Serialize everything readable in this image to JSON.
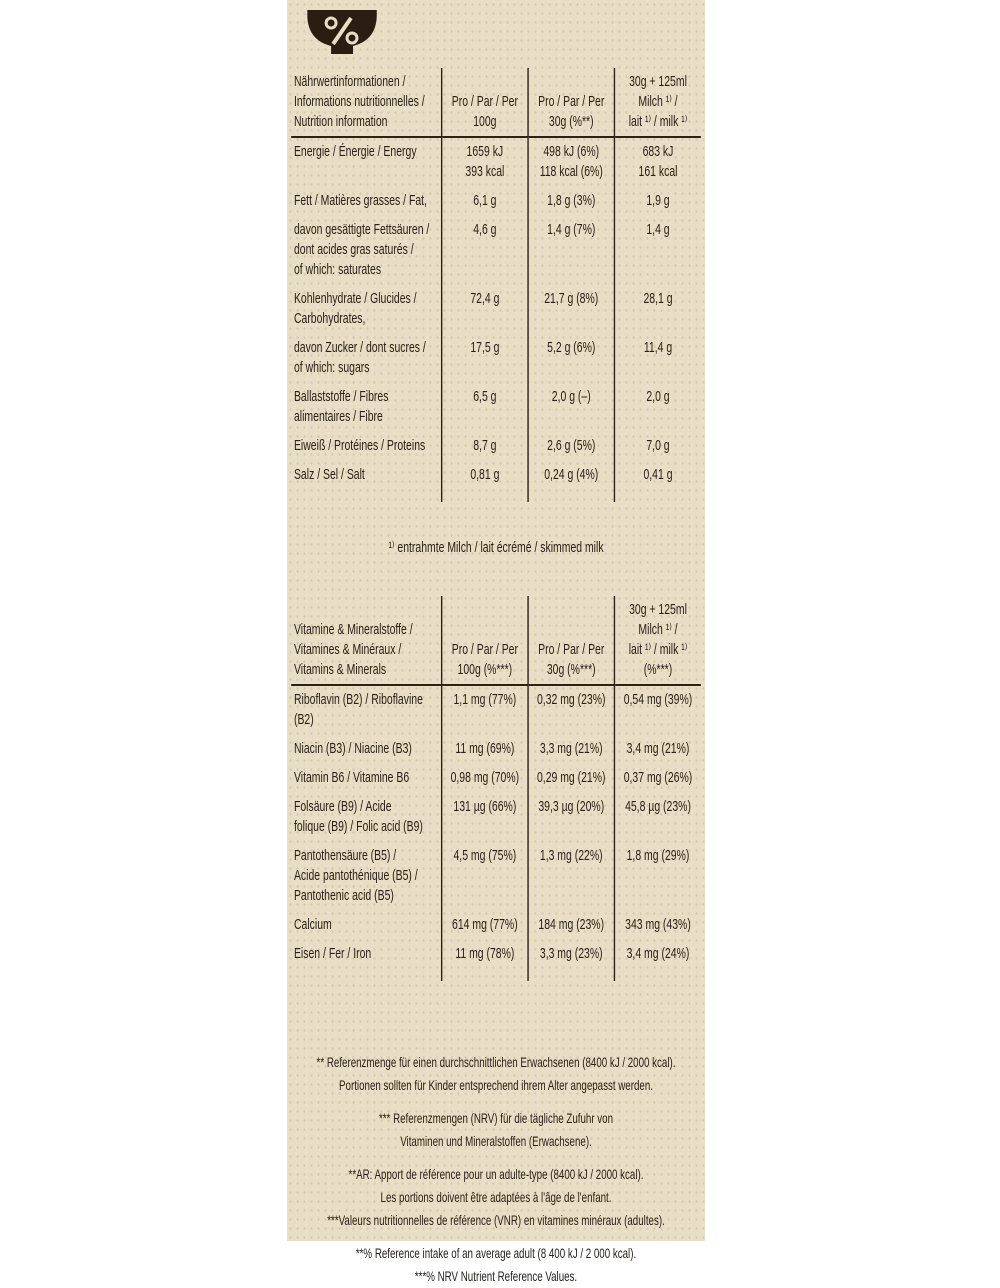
{
  "icon": "percent-bowl-icon",
  "colors": {
    "background": "#e8dec6",
    "text": "#2a2118"
  },
  "nutrition": {
    "headers": [
      "Nährwertinformationen /\nInformations nutritionnelles /\nNutrition information",
      "Pro / Par / Per\n100g",
      "Pro / Par / Per\n30g (%**)",
      "30g + 125ml\nMilch ¹⁾ /\nlait ¹⁾ / milk ¹⁾"
    ],
    "rows": [
      {
        "label": "Energie / Énergie / Energy",
        "c1": "1659 kJ\n393 kcal",
        "c2": "498 kJ  (6%)\n118 kcal  (6%)",
        "c3": "683 kJ\n161 kcal"
      },
      {
        "label": "Fett / Matières grasses / Fat,",
        "c1": "6,1 g",
        "c2": "1,8 g  (3%)",
        "c3": "1,9 g"
      },
      {
        "label": "davon gesättigte Fettsäuren /\ndont acides gras saturés /\nof which: saturates",
        "c1": "4,6 g",
        "c2": "1,4 g  (7%)",
        "c3": "1,4 g"
      },
      {
        "label": "Kohlenhydrate / Glucides /\nCarbohydrates,",
        "c1": "72,4 g",
        "c2": "21,7 g  (8%)",
        "c3": "28,1 g"
      },
      {
        "label": "davon Zucker / dont sucres /\nof which: sugars",
        "c1": "17,5 g",
        "c2": "5,2 g  (6%)",
        "c3": "11,4 g"
      },
      {
        "label": "Ballaststoffe / Fibres\nalimentaires / Fibre",
        "c1": "6,5 g",
        "c2": "2,0 g  (–)",
        "c3": "2,0 g"
      },
      {
        "label": "Eiweiß / Protéines / Proteins",
        "c1": "8,7 g",
        "c2": "2,6 g  (5%)",
        "c3": "7,0 g"
      },
      {
        "label": "Salz / Sel / Salt",
        "c1": "0,81 g",
        "c2": "0,24 g  (4%)",
        "c3": "0,41 g"
      }
    ]
  },
  "milk_note": "¹⁾ entrahmte Milch / lait écrémé / skimmed milk",
  "vitamins": {
    "headers": [
      "Vitamine & Mineralstoffe /\nVitamines & Minéraux /\nVitamins & Minerals",
      "Pro / Par / Per\n100g (%***)",
      "Pro / Par / Per\n30g (%***)",
      "30g + 125ml\nMilch ¹⁾ /\nlait ¹⁾ / milk ¹⁾\n(%***)"
    ],
    "rows": [
      {
        "label": "Riboflavin (B2) / Riboflavine (B2)",
        "c1": "1,1 mg  (77%)",
        "c2": "0,32 mg  (23%)",
        "c3": "0,54 mg  (39%)"
      },
      {
        "label": "Niacin (B3) / Niacine (B3)",
        "c1": "11 mg  (69%)",
        "c2": "3,3 mg  (21%)",
        "c3": "3,4 mg   (21%)"
      },
      {
        "label": "Vitamin B6 / Vitamine B6",
        "c1": "0,98 mg  (70%)",
        "c2": "0,29 mg  (21%)",
        "c3": "0,37 mg  (26%)"
      },
      {
        "label": "Folsäure (B9)  / Acide\nfolique (B9) / Folic acid (B9)",
        "c1": "131 µg  (66%)",
        "c2": "39,3 µg  (20%)",
        "c3": "45,8 µg  (23%)"
      },
      {
        "label": "Pantothensäure (B5) /\nAcide  pantothénique (B5) /\nPantothenic acid (B5)",
        "c1": "4,5 mg  (75%)",
        "c2": "1,3 mg  (22%)",
        "c3": "1,8 mg   (29%)"
      },
      {
        "label": "Calcium",
        "c1": "614 mg  (77%)",
        "c2": "184 mg  (23%)",
        "c3": "343 mg  (43%)"
      },
      {
        "label": "Eisen / Fer / Iron",
        "c1": "11 mg  (78%)",
        "c2": "3,3 mg  (23%)",
        "c3": "3,4 mg   (24%)"
      }
    ]
  },
  "footnotes": [
    "** Referenzmenge für einen durchschnittlichen Erwachsenen (8400 kJ / 2000 kcal).",
    "Portionen sollten für Kinder entsprechend ihrem Alter angepasst werden.",
    "*** Referenzmengen (NRV) für die tägliche Zufuhr von",
    "Vitaminen und Mineralstoffen (Erwachsene).",
    "**AR: Apport de référence pour un adulte-type (8400 kJ / 2000 kcal).",
    "Les portions doivent être adaptées à l'âge de l'enfant.",
    "***Valeurs nutritionnelles de référence (VNR) en vitamines minéraux (adultes).",
    "**% Reference intake of an average adult (8 400 kJ / 2 000 kcal).",
    "***% NRV Nutrient Reference Values."
  ]
}
